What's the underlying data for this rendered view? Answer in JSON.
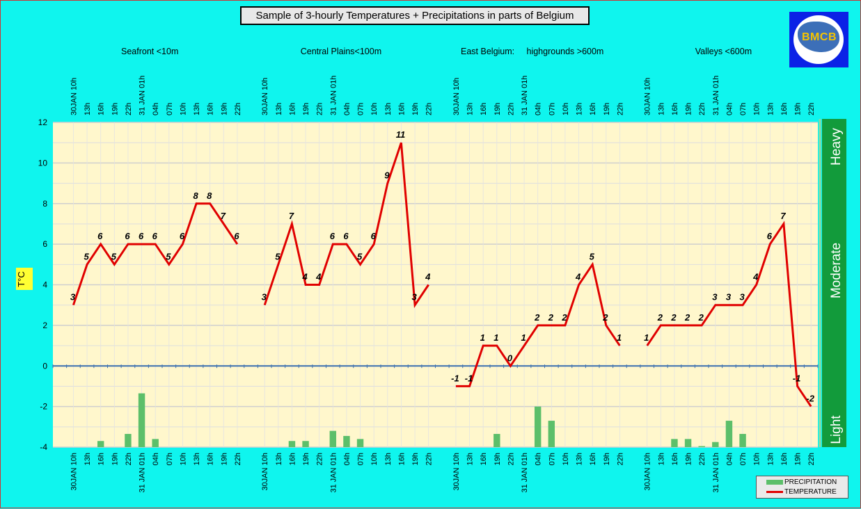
{
  "title": "Sample of 3-hourly Temperatures + Precipitations in parts of Belgium",
  "logo_text": "BMCB",
  "y_axis_label": "T°C",
  "legend": {
    "precipitation": "PRECIPITATION",
    "temperature": "TEMPERATURE"
  },
  "intensity_labels": [
    "Heavy",
    "Moderate",
    "Light"
  ],
  "colors": {
    "background": "#0ff5ee",
    "plot": "#fff7cc",
    "temperature": "#e00000",
    "precipitation": "#5cbf6a",
    "intensity_bar": "#129b3b",
    "zero_line": "#3a6fb0"
  },
  "chart_data": {
    "type": "line",
    "ylim": [
      -4,
      12
    ],
    "yticks": [
      12,
      10,
      8,
      6,
      4,
      2,
      0,
      -2,
      -4
    ],
    "grid": true,
    "legend_position": "bottom-right",
    "regions": [
      {
        "name": "Seafront <10m",
        "x": [
          "30JAN 10h",
          "13h",
          "16h",
          "19h",
          "22h",
          "31 JAN 01h",
          "04h",
          "07h",
          "10h",
          "13h",
          "16h",
          "19h",
          "22h"
        ],
        "temperature": [
          3,
          5,
          6,
          5,
          6,
          6,
          6,
          5,
          6,
          8,
          8,
          7,
          6
        ],
        "precipitation": [
          null,
          null,
          -3.7,
          null,
          -3.35,
          -1.35,
          -3.6,
          null,
          null,
          null,
          null,
          null,
          null
        ]
      },
      {
        "name": "Central Plains<100m",
        "x": [
          "30JAN 10h",
          "13h",
          "16h",
          "19h",
          "22h",
          "31 JAN 01h",
          "04h",
          "07h",
          "10h",
          "13h",
          "16h",
          "19h",
          "22h"
        ],
        "temperature": [
          3,
          5,
          7,
          4,
          4,
          6,
          6,
          5,
          6,
          9,
          11,
          3,
          4
        ],
        "precipitation": [
          null,
          null,
          -3.7,
          -3.7,
          null,
          -3.2,
          -3.45,
          -3.6,
          null,
          null,
          null,
          null,
          null
        ]
      },
      {
        "name": "East Belgium:     highgrounds >600m",
        "x": [
          "30JAN 10h",
          "13h",
          "16h",
          "19h",
          "22h",
          "31 JAN 01h",
          "04h",
          "07h",
          "10h",
          "13h",
          "16h",
          "19h",
          "22h"
        ],
        "temperature": [
          -1,
          -1,
          1,
          1,
          0,
          1,
          2,
          2,
          2,
          4,
          5,
          2,
          1
        ],
        "precipitation": [
          null,
          null,
          null,
          -3.35,
          null,
          null,
          -2.0,
          -2.7,
          null,
          null,
          null,
          null,
          null
        ]
      },
      {
        "name": "Valleys <600m",
        "x": [
          "30JAN 10h",
          "13h",
          "16h",
          "19h",
          "22h",
          "31 JAN 01h",
          "04h",
          "07h",
          "10h",
          "13h",
          "16h",
          "19h",
          "22h"
        ],
        "temperature": [
          1,
          2,
          2,
          2,
          2,
          3,
          3,
          3,
          4,
          6,
          7,
          -1,
          -2
        ],
        "precipitation": [
          null,
          null,
          -3.6,
          -3.6,
          -3.95,
          -3.75,
          -2.7,
          -3.35,
          null,
          null,
          null,
          null,
          null
        ]
      }
    ]
  }
}
